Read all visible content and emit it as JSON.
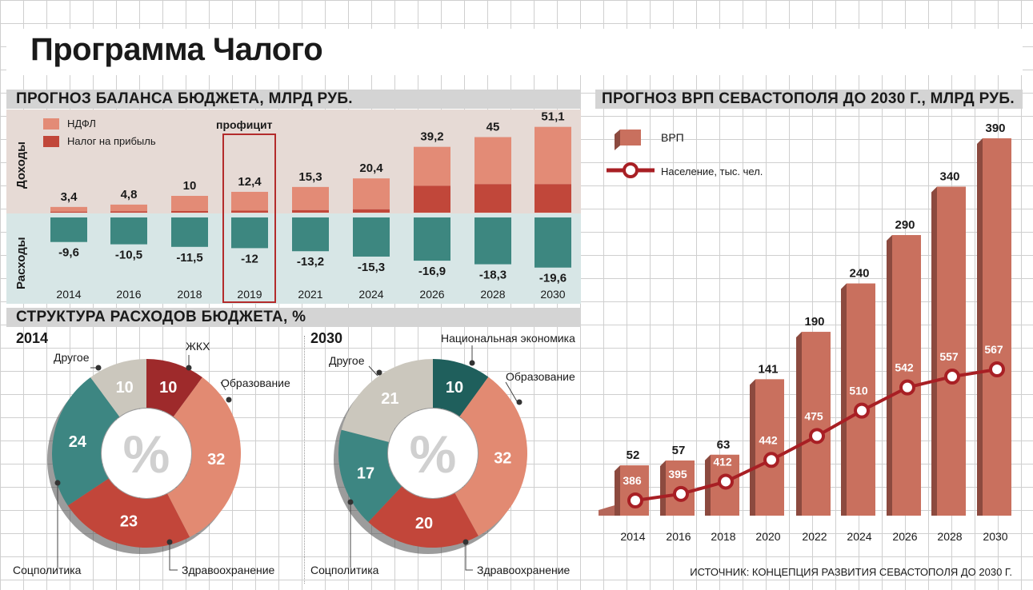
{
  "title": "Программа Чалого",
  "budget": {
    "section_title": "ПРОГНОЗ БАЛАНСА БЮДЖЕТА, МЛРД РУБ.",
    "income_label": "Доходы",
    "expense_label": "Расходы",
    "surplus_label": "профицит",
    "legend": [
      {
        "name": "НДФЛ",
        "color": "#e38b76"
      },
      {
        "name": "Налог на прибыль",
        "color": "#c1473a"
      }
    ]
  },
  "expenses_structure": {
    "section_title": "СТРУКТУРА РАСХОДОВ БЮДЖЕТА, %",
    "year_2014": "2014",
    "year_2030": "2030",
    "center_symbol": "%"
  },
  "grp": {
    "section_title": "ПРОГНОЗ ВРП СЕВАСТОПОЛЯ ДО 2030 Г., МЛРД РУБ.",
    "legend_grp": "ВРП",
    "legend_pop": "Население, тыс. чел."
  },
  "source": "ИСТОЧНИК: КОНЦЕПЦИЯ РАЗВИТИЯ СЕВАСТОПОЛЯ ДО 2030 Г.",
  "chart_data": [
    {
      "type": "bar",
      "title": "ПРОГНОЗ БАЛАНСА БЮДЖЕТА, МЛРД РУБ.",
      "categories": [
        "2014",
        "2016",
        "2018",
        "2019",
        "2021",
        "2024",
        "2026",
        "2028",
        "2030"
      ],
      "income_labels": [
        "3,4",
        "4,8",
        "10",
        "12,4",
        "15,3",
        "20,4",
        "39,2",
        "45",
        "51,1"
      ],
      "income_total": [
        3.4,
        4.8,
        10,
        12.4,
        15.3,
        20.4,
        39.2,
        45,
        51.1
      ],
      "income_tax_on_profit": [
        0.6,
        0.8,
        1.0,
        1.2,
        1.5,
        2.0,
        16,
        17,
        17
      ],
      "expense_labels": [
        "-9,6",
        "-10,5",
        "-11,5",
        "-12",
        "-13,2",
        "-15,3",
        "-16,9",
        "-18,3",
        "-19,6"
      ],
      "expenses": [
        -9.6,
        -10.5,
        -11.5,
        -12,
        -13.2,
        -15.3,
        -16.9,
        -18.3,
        -19.6
      ],
      "highlight": "2019"
    },
    {
      "type": "pie",
      "title": "2014",
      "slices": [
        {
          "label": "ЖКХ",
          "value": 10,
          "color": "#9e2a2b"
        },
        {
          "label": "Образование",
          "value": 32,
          "color": "#e28a72"
        },
        {
          "label": "Здравоохранение",
          "value": 23,
          "color": "#c2463a"
        },
        {
          "label": "Соцполитика",
          "value": 24,
          "color": "#3d8682"
        },
        {
          "label": "Другое",
          "value": 10,
          "color": "#cbc7bd"
        }
      ]
    },
    {
      "type": "pie",
      "title": "2030",
      "slices": [
        {
          "label": "Национальная экономика",
          "value": 10,
          "color": "#1f5f5c"
        },
        {
          "label": "Образование",
          "value": 32,
          "color": "#e28a72"
        },
        {
          "label": "Здравоохранение",
          "value": 20,
          "color": "#c2463a"
        },
        {
          "label": "Соцполитика",
          "value": 17,
          "color": "#3d8682"
        },
        {
          "label": "Другое",
          "value": 21,
          "color": "#cbc7bd"
        }
      ]
    },
    {
      "type": "bar",
      "title": "ПРОГНОЗ ВРП СЕВАСТОПОЛЯ ДО 2030 Г., МЛРД РУБ.",
      "categories": [
        "2014",
        "2016",
        "2018",
        "2020",
        "2022",
        "2024",
        "2026",
        "2028",
        "2030"
      ],
      "grp": [
        52,
        57,
        63,
        141,
        190,
        240,
        290,
        340,
        390
      ],
      "population": [
        386,
        395,
        412,
        442,
        475,
        510,
        542,
        557,
        567
      ],
      "population_label": "Население, тыс. чел.",
      "ylim": [
        0,
        390
      ]
    }
  ]
}
